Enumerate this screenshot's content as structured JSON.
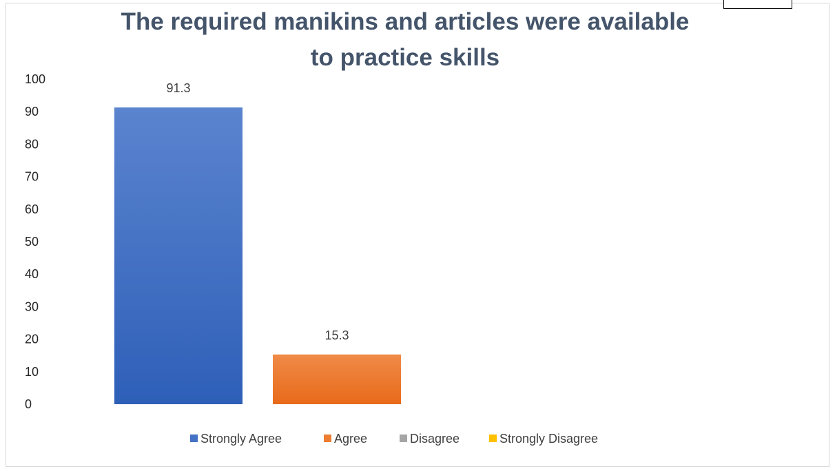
{
  "chart_data": {
    "type": "bar",
    "title_lines": [
      "The required manikins and articles were available",
      "to practice skills"
    ],
    "series": [
      {
        "name": "Strongly Agree",
        "value": 91.3,
        "color": "#4472c4",
        "color_light": "#5b84cf",
        "color_dark": "#2e5fb8"
      },
      {
        "name": "Agree",
        "value": 15.3,
        "color": "#ed7d31",
        "color_light": "#f08b48",
        "color_dark": "#e86a1a"
      },
      {
        "name": "Disagree",
        "value": null,
        "color": "#a5a5a5"
      },
      {
        "name": "Strongly Disagree",
        "value": null,
        "color": "#ffc000"
      }
    ],
    "data_labels": [
      "91.3",
      "15.3"
    ],
    "y_ticks": [
      "0",
      "10",
      "20",
      "30",
      "40",
      "50",
      "60",
      "70",
      "80",
      "90",
      "100"
    ],
    "ylim": [
      0,
      100
    ],
    "grid": false,
    "legend_position": "bottom"
  }
}
